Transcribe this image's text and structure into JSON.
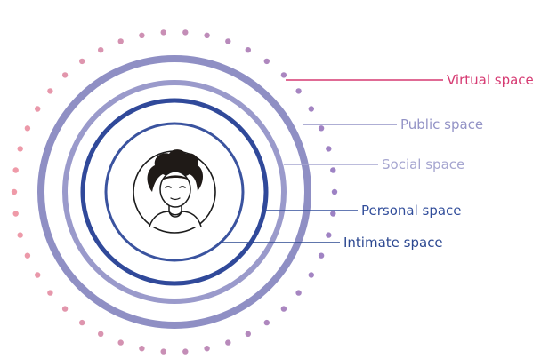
{
  "colors": {
    "virtual": "#d63a72",
    "public": "#9393c6",
    "social": "#a6a6d0",
    "personal": "#324e9b",
    "intimate": "#2c4891",
    "dot_start": "#ef9aa8",
    "dot_end": "#9d82c4",
    "avatar_stroke": "#1c1c1c",
    "hair": "#1f1a17"
  },
  "layers": {
    "virtual": {
      "label": "Virtual space"
    },
    "public": {
      "label": "Public space"
    },
    "social": {
      "label": "Social space"
    },
    "personal": {
      "label": "Personal space"
    },
    "intimate": {
      "label": "Intimate space"
    }
  },
  "avatar": {
    "icon": "person-avatar-icon"
  }
}
